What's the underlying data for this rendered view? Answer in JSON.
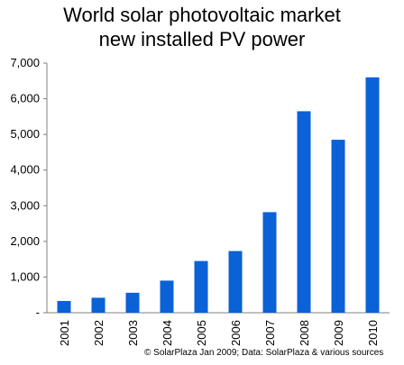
{
  "chart_data": {
    "type": "bar",
    "title_line1": "World solar photovoltaic market",
    "title_line2": "new installed PV power",
    "categories": [
      "2001",
      "2002",
      "2003",
      "2004",
      "2005",
      "2006",
      "2007",
      "2008",
      "2009",
      "2010"
    ],
    "values": [
      330,
      420,
      560,
      900,
      1450,
      1730,
      2820,
      5650,
      4850,
      6600
    ],
    "ylim": [
      0,
      7000
    ],
    "yticks": [
      0,
      1000,
      2000,
      3000,
      4000,
      5000,
      6000,
      7000
    ],
    "ytick_labels": [
      "-",
      "1,000",
      "2,000",
      "3,000",
      "4,000",
      "5,000",
      "6,000",
      "7,000"
    ],
    "bar_color": "#0b61d6",
    "grid": false,
    "credit": "© SolarPlaza Jan  2009; Data: SolarPlaza &  various sources"
  }
}
